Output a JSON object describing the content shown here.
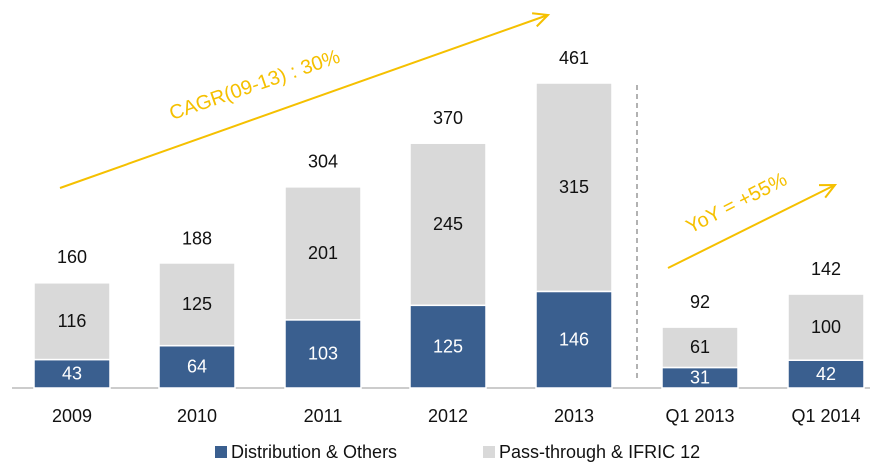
{
  "chart_data": {
    "type": "stacked_bar",
    "categories": [
      "2009",
      "2010",
      "2011",
      "2012",
      "2013",
      "Q1 2013",
      "Q1 2014"
    ],
    "series": [
      {
        "name": "Distribution & Others",
        "color": "#3a5f8f",
        "values": [
          43,
          64,
          103,
          125,
          146,
          31,
          42
        ]
      },
      {
        "name": "Pass-through & IFRIC 12",
        "color": "#d9d9d9",
        "values": [
          116,
          125,
          201,
          245,
          315,
          61,
          100
        ]
      }
    ],
    "totals": [
      160,
      188,
      304,
      370,
      461,
      92,
      142
    ],
    "annotations": [
      "CAGR(09-13) : 30%",
      "YoY = +55%"
    ],
    "arrow_color": "#f5c000"
  }
}
